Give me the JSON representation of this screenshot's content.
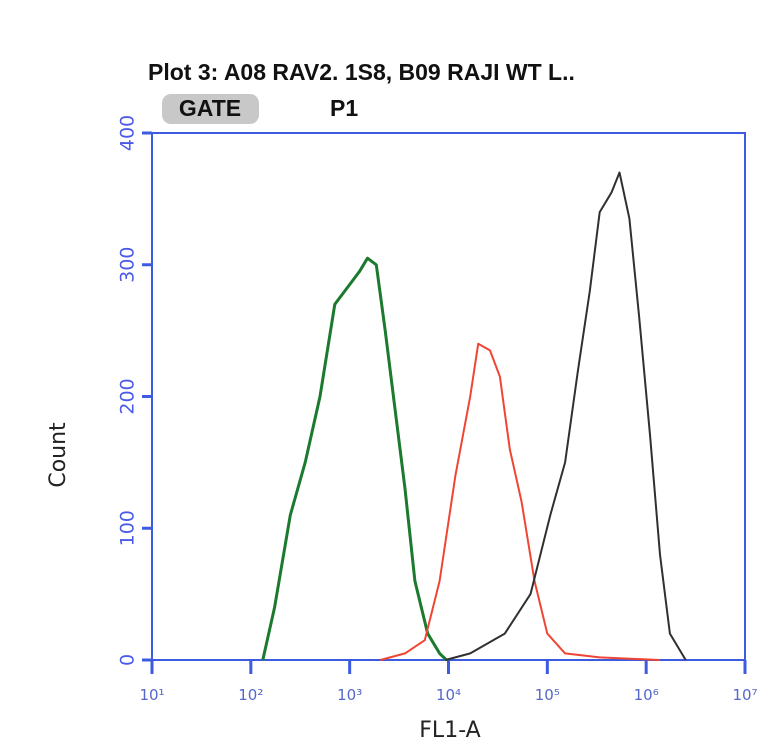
{
  "chart_data": {
    "type": "line",
    "title": "Plot 3: A08 RAV2. 1S8, B09 RAJI WT L..",
    "gate_label": "GATE",
    "gate_value": "P1",
    "x_label": "FL1-A",
    "y_label": "Count",
    "xscale": "log",
    "xlim": [
      10,
      10000000
    ],
    "ylim": [
      0,
      400
    ],
    "xticks": [
      {
        "value": 10,
        "label": "10¹"
      },
      {
        "value": 100,
        "label": "10²"
      },
      {
        "value": 1000,
        "label": "10³"
      },
      {
        "value": 10000,
        "label": "10⁴"
      },
      {
        "value": 100000,
        "label": "10⁵"
      },
      {
        "value": 1000000,
        "label": "10⁶"
      },
      {
        "value": 10000000,
        "label": "10⁷"
      }
    ],
    "yticks": [
      0,
      100,
      200,
      300,
      400
    ],
    "series": [
      {
        "color": "#1b7a2e",
        "x": [
          132,
          174,
          251,
          355,
          501,
          708,
          1000,
          1259,
          1514,
          1862,
          2291,
          2884,
          3631,
          4571,
          6166,
          8128,
          9550
        ],
        "values": [
          0,
          40,
          110,
          150,
          200,
          270,
          285,
          295,
          305,
          300,
          250,
          190,
          130,
          60,
          20,
          5,
          0
        ]
      },
      {
        "color": "#f04535",
        "x": [
          2042,
          3631,
          5754,
          8128,
          11749,
          16596,
          19953,
          26303,
          33113,
          41687,
          54954,
          74131,
          100000,
          151356,
          338844,
          1380384
        ],
        "values": [
          0,
          5,
          15,
          60,
          140,
          200,
          240,
          235,
          215,
          160,
          120,
          60,
          20,
          5,
          2,
          0
        ]
      },
      {
        "color": "#303030",
        "x": [
          9333,
          16596,
          37154,
          67608,
          107152,
          151356,
          204174,
          269153,
          338844,
          446684,
          537032,
          676083,
          851138,
          1096478,
          1380384,
          1737801,
          2511886
        ],
        "values": [
          0,
          5,
          20,
          50,
          110,
          150,
          220,
          280,
          340,
          355,
          370,
          335,
          260,
          170,
          80,
          20,
          0
        ]
      }
    ]
  }
}
